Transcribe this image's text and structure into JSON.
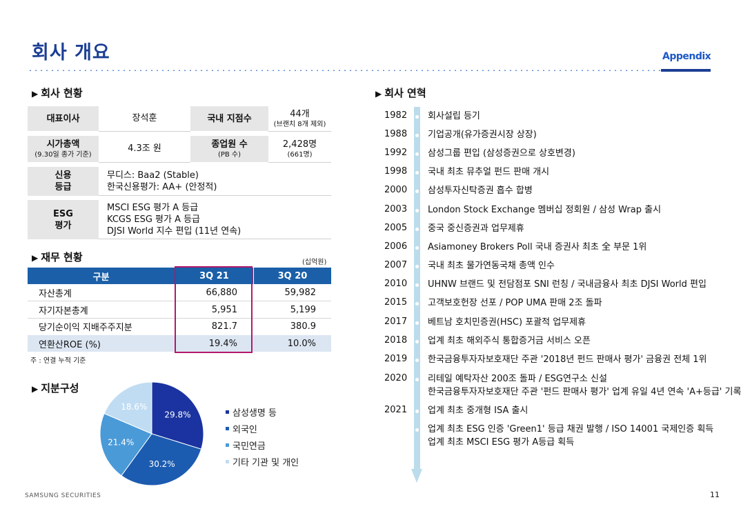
{
  "header": {
    "title": "회사 개요",
    "appendix": "Appendix"
  },
  "overview": {
    "section_title": "회사 현황",
    "ceo_label": "대표이사",
    "ceo_value": "장석훈",
    "branch_label": "국내 지점수",
    "branch_value": "44개",
    "branch_note": "(브랜치 8개 제외)",
    "market_cap_label": "시가총액",
    "market_cap_note": "(9.30일 종가 기준)",
    "market_cap_value": "4.3조 원",
    "employees_label": "종업원 수",
    "employees_note": "(PB 수)",
    "employees_value": "2,428명",
    "employees_sub": "(661명)",
    "credit_label_1": "신용",
    "credit_label_2": "등급",
    "credit_lines": [
      "무디스: Baa2 (Stable)",
      "한국신용평가: AA+ (안정적)"
    ],
    "esg_label_1": "ESG",
    "esg_label_2": "평가",
    "esg_lines": [
      "MSCI ESG 평가 A 등급",
      "KCGS ESG 평가 A 등급",
      "DJSI World 지수 편입 (11년 연속)"
    ]
  },
  "finance": {
    "section_title": "재무 현황",
    "unit": "(십억원)",
    "headers": [
      "구분",
      "3Q 21",
      "3Q 20"
    ],
    "rows": [
      [
        "자산총계",
        "66,880",
        "59,982"
      ],
      [
        "자기자본총계",
        "5,951",
        "5,199"
      ],
      [
        "당기순이익 지배주주지분",
        "821.7",
        "380.9"
      ],
      [
        "연환산ROE (%)",
        "19.4%",
        "10.0%"
      ]
    ],
    "note": "주 : 연결 누적 기준"
  },
  "shareholding": {
    "section_title": "지분구성",
    "chart_data": {
      "type": "pie",
      "slices": [
        {
          "name": "삼성생명 등",
          "value": 29.8,
          "label": "29.8%",
          "color": "#1a33a0"
        },
        {
          "name": "외국인",
          "value": 30.2,
          "label": "30.2%",
          "color": "#1c5cb0"
        },
        {
          "name": "국민연금",
          "value": 21.4,
          "label": "21.4%",
          "color": "#4a9ad8"
        },
        {
          "name": "기타 기관 및 개인",
          "value": 18.6,
          "label": "18.6%",
          "color": "#c0dcf2"
        }
      ]
    }
  },
  "history": {
    "section_title": "회사 연혁",
    "events": [
      {
        "year": "1982",
        "lines": [
          "회사설립 등기"
        ]
      },
      {
        "year": "1988",
        "lines": [
          "기업공개(유가증권시장 상장)"
        ]
      },
      {
        "year": "1992",
        "lines": [
          "삼성그룹 편입 (삼성증권으로 상호변경)"
        ]
      },
      {
        "year": "1998",
        "lines": [
          "국내 최초 뮤추얼 펀드 판매 개시"
        ]
      },
      {
        "year": "2000",
        "lines": [
          "삼성투자신탁증권 흡수 합병"
        ]
      },
      {
        "year": "2003",
        "lines": [
          "London Stock Exchange 멤버십 정회원 / 삼성 Wrap 출시"
        ]
      },
      {
        "year": "2005",
        "lines": [
          "중국 중신증권과 업무제휴"
        ]
      },
      {
        "year": "2006",
        "lines": [
          "Asiamoney Brokers Poll 국내 증권사 최초 全 부문 1위"
        ]
      },
      {
        "year": "2007",
        "lines": [
          "국내 최초 물가연동국채 총액 인수"
        ]
      },
      {
        "year": "2010",
        "lines": [
          "UHNW 브랜드 및 전담점포 SNI 런칭 / 국내금융사 최초 DJSI World 편입"
        ]
      },
      {
        "year": "2015",
        "lines": [
          "고객보호헌장 선포 / POP UMA 판매 2조 돌파"
        ]
      },
      {
        "year": "2017",
        "lines": [
          "베트남 호치민증권(HSC) 포괄적 업무제휴"
        ]
      },
      {
        "year": "2018",
        "lines": [
          "업계 최초 해외주식 통합증거금 서비스 오픈"
        ]
      },
      {
        "year": "2019",
        "lines": [
          "한국금융투자자보호재단 주관 '2018년 펀드 판매사 평가' 금융권 전체 1위"
        ]
      },
      {
        "year": "2020",
        "lines": [
          "리테일 예탁자산 200조 돌파 / ESG연구소 신설",
          "한국금융투자자보호재단 주관 '펀드 판매사 평가' 업계 유일 4년 연속 'A+등급' 기록"
        ]
      },
      {
        "year": "2021",
        "lines": [
          "업계 최초 중개형 ISA 출시"
        ]
      },
      {
        "year": "",
        "lines": [
          "업계 최초 ESG 인증 'Green1' 등급 채권 발행 / ISO 14001 국제인증 획득",
          "업계 최초 MSCI ESG 평가 A등급 획득"
        ]
      }
    ]
  },
  "footer": {
    "company": "SAMSUNG SECURITIES",
    "page": "11"
  }
}
